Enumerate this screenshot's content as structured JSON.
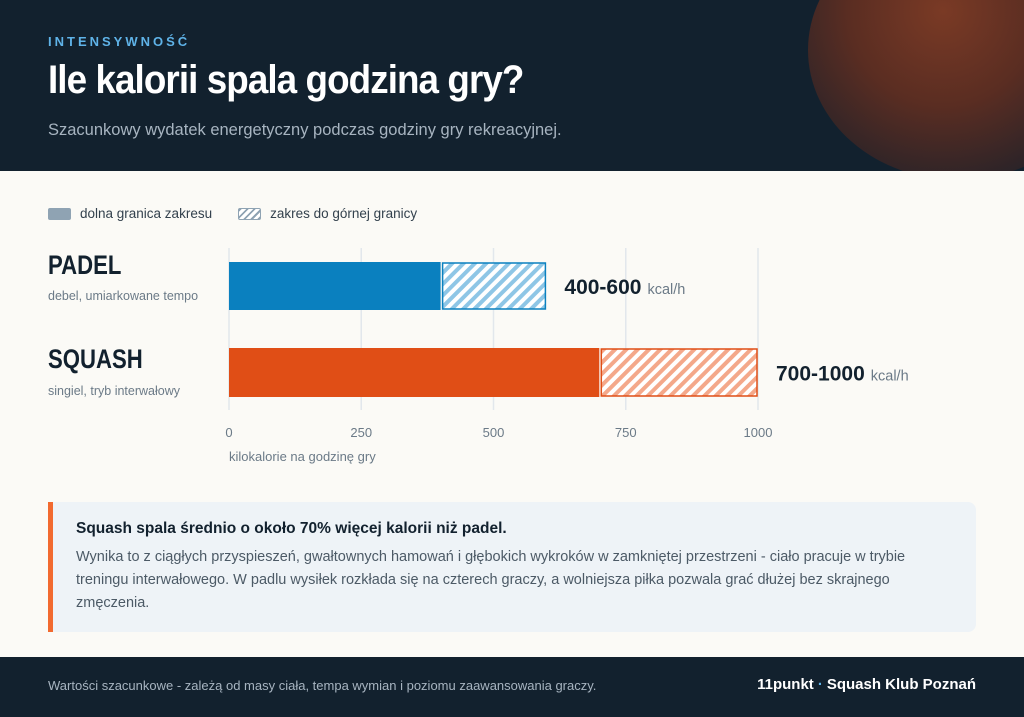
{
  "header": {
    "eyebrow": "INTENSYWNOŚĆ",
    "title": "Ile kalorii spala godzina gry?",
    "subtitle": "Szacunkowy wydatek energetyczny podczas godziny gry rekreacyjnej."
  },
  "legend": {
    "solid_label": "dolna granica zakresu",
    "hatch_label": "zakres do górnej granicy"
  },
  "colors": {
    "padel": "#0a80bf",
    "squash": "#e04e16",
    "grid": "#e2e7ec",
    "header_bg": "#12212e",
    "accent": "#f26a2f"
  },
  "chart_data": {
    "type": "bar",
    "orientation": "horizontal",
    "stacked_range": true,
    "categories": [
      {
        "name": "PADEL",
        "description": "debel, umiarkowane tempo",
        "low": 400,
        "high": 600,
        "value_label": "400-600",
        "unit": "kcal/h",
        "color": "#0a80bf",
        "hatch": "#8ec6e6"
      },
      {
        "name": "SQUASH",
        "description": "singiel, tryb interwałowy",
        "low": 700,
        "high": 1000,
        "value_label": "700-1000",
        "unit": "kcal/h",
        "color": "#e04e16",
        "hatch": "#f4a88a"
      }
    ],
    "xlim": [
      0,
      1000
    ],
    "xticks": [
      0,
      250,
      500,
      750,
      1000
    ],
    "xlabel": "kilokalorie na godzinę gry",
    "grid": "vertical",
    "legend_position": "top-left"
  },
  "insight": {
    "title": "Squash spala średnio o około 70% więcej kalorii niż padel.",
    "body": "Wynika to z ciągłych przyspieszeń, gwałtownych hamowań i głębokich wykroków w zamkniętej przestrzeni - ciało pracuje w trybie treningu interwałowego. W padlu wysiłek rozkłada się na czterech graczy, a wolniejsza piłka pozwala grać dłużej bez skrajnego zmęczenia."
  },
  "footer": {
    "note": "Wartości szacunkowe - zależą od masy ciała, tempa wymian i poziomu zaawansowania graczy.",
    "brand_name": "11punkt",
    "brand_separator": "·",
    "brand_club": "Squash Klub Poznań"
  }
}
